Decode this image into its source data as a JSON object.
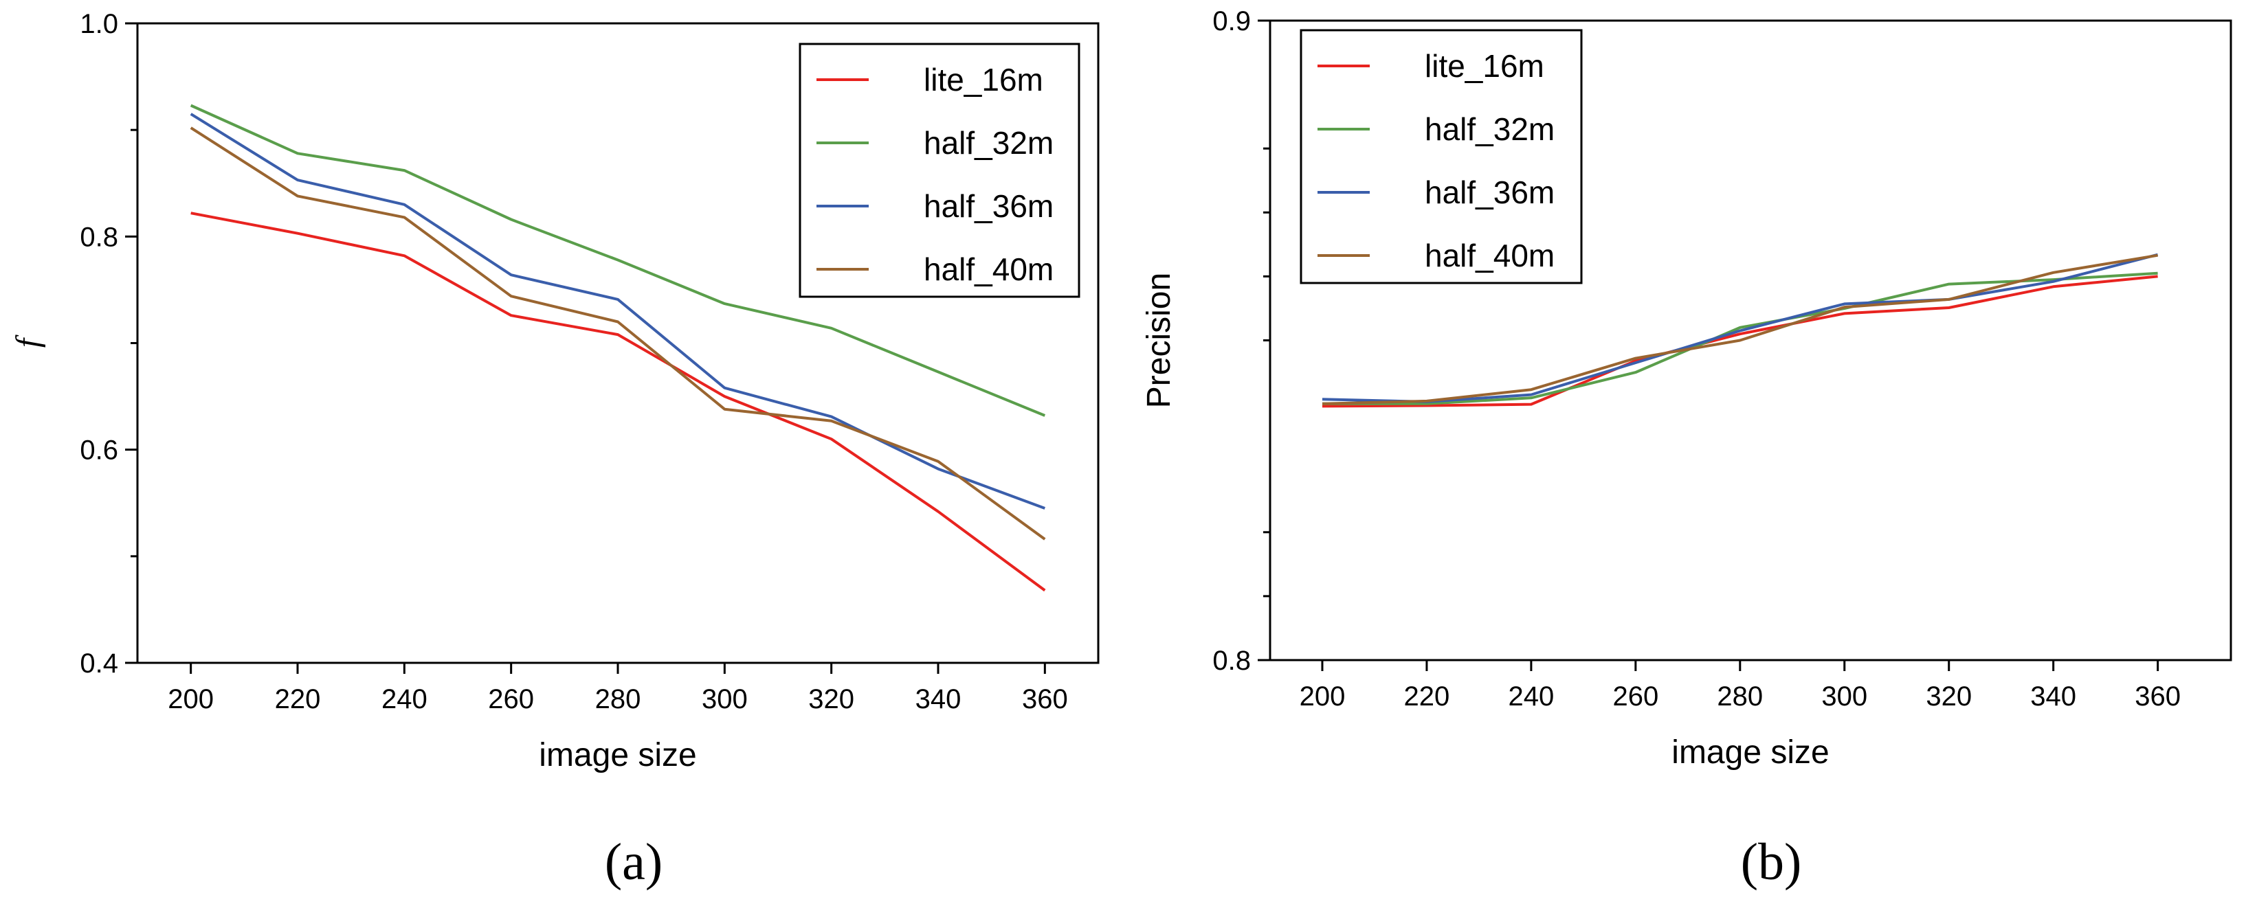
{
  "colors": {
    "lite_16m": "#e8231f",
    "half_32m": "#5a9e4b",
    "half_36m": "#3a5eab",
    "half_40m": "#9a6530"
  },
  "chart_data": [
    {
      "type": "line",
      "caption": "(a)",
      "xlabel": "image size",
      "ylabel": "f",
      "x": [
        200,
        220,
        240,
        260,
        280,
        300,
        320,
        340,
        360
      ],
      "xticks": [
        "200",
        "220",
        "240",
        "260",
        "280",
        "300",
        "320",
        "340",
        "360"
      ],
      "xlim": [
        190,
        370
      ],
      "ylim": [
        0.4,
        1.0
      ],
      "yticks": [
        {
          "value": 0.4,
          "label": "0.4"
        },
        {
          "value": 0.6,
          "label": "0.6"
        },
        {
          "value": 0.8,
          "label": "0.8"
        },
        {
          "value": 1.0,
          "label": "1.0"
        }
      ],
      "minor_yticks": [
        0.5,
        0.7,
        0.9
      ],
      "legend_position": "top-right",
      "series": [
        {
          "name": "lite_16m",
          "values": [
            0.822,
            0.803,
            0.782,
            0.726,
            0.708,
            0.65,
            0.61,
            0.542,
            0.468
          ]
        },
        {
          "name": "half_32m",
          "values": [
            0.923,
            0.878,
            0.862,
            0.816,
            0.778,
            0.737,
            0.714,
            0.673,
            0.632
          ]
        },
        {
          "name": "half_36m",
          "values": [
            0.915,
            0.853,
            0.83,
            0.764,
            0.741,
            0.658,
            0.631,
            0.582,
            0.545
          ]
        },
        {
          "name": "half_40m",
          "values": [
            0.902,
            0.838,
            0.818,
            0.744,
            0.72,
            0.638,
            0.627,
            0.589,
            0.516
          ]
        }
      ]
    },
    {
      "type": "line",
      "caption": "(b)",
      "xlabel": "image size",
      "ylabel": "Precision",
      "x": [
        200,
        220,
        240,
        260,
        280,
        300,
        320,
        340,
        360
      ],
      "xticks": [
        "200",
        "220",
        "240",
        "260",
        "280",
        "300",
        "320",
        "340",
        "360"
      ],
      "xlim": [
        190,
        374
      ],
      "ylim": [
        0.8,
        0.9
      ],
      "yticks": [
        {
          "value": 0.8,
          "label": "0.8"
        },
        {
          "value": 0.9,
          "label": "0.9"
        }
      ],
      "minor_yticks": [
        0.81,
        0.82,
        0.85,
        0.86,
        0.87,
        0.88
      ],
      "legend_position": "top-left",
      "series": [
        {
          "name": "lite_16m",
          "values": [
            0.8397,
            0.8398,
            0.84,
            0.8468,
            0.851,
            0.8542,
            0.8551,
            0.8584,
            0.86
          ]
        },
        {
          "name": "half_32m",
          "values": [
            0.8401,
            0.8401,
            0.841,
            0.845,
            0.852,
            0.855,
            0.8588,
            0.8595,
            0.8605
          ]
        },
        {
          "name": "half_36m",
          "values": [
            0.8408,
            0.8404,
            0.8415,
            0.8465,
            0.8515,
            0.8557,
            0.8564,
            0.8592,
            0.8634
          ]
        },
        {
          "name": "half_40m",
          "values": [
            0.8401,
            0.8405,
            0.8423,
            0.8472,
            0.85,
            0.8552,
            0.8564,
            0.8606,
            0.8633
          ]
        }
      ]
    }
  ]
}
